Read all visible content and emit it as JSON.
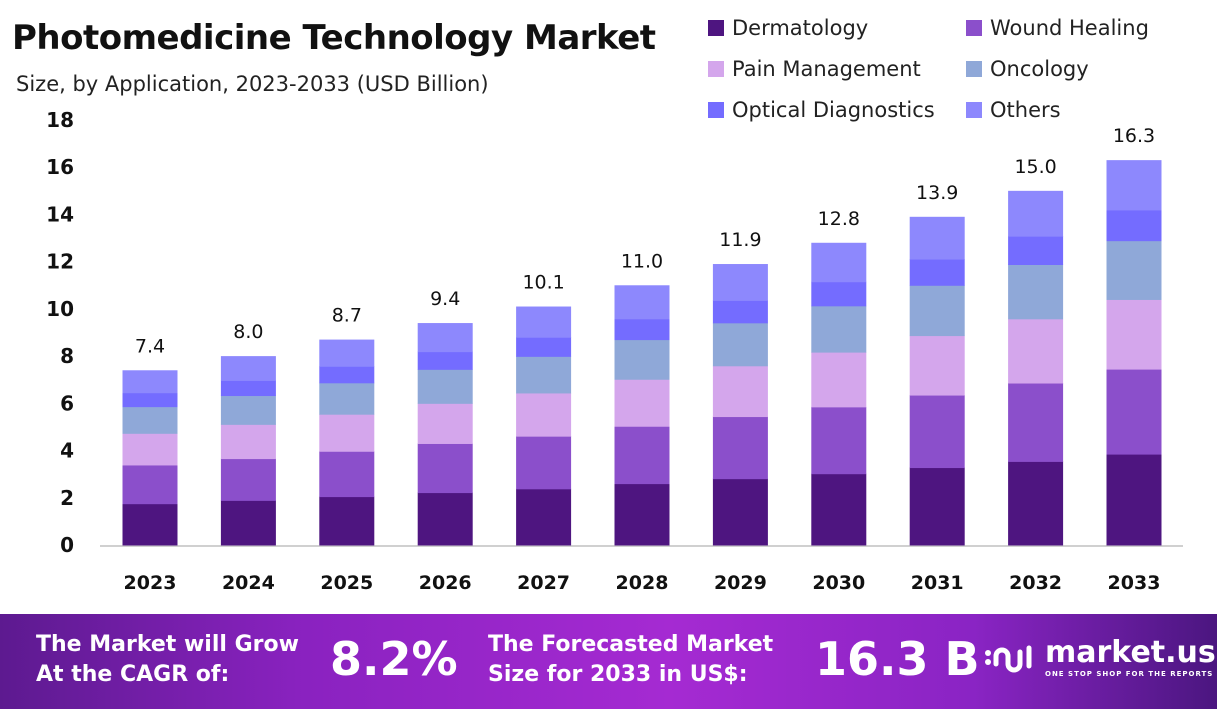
{
  "chart_data": {
    "type": "bar",
    "stacked": true,
    "title": "Photomedicine Technology Market",
    "subtitle": "Size, by Application, 2023-2033 (USD Billion)",
    "xlabel": "",
    "ylabel": "",
    "ylim": [
      0,
      18
    ],
    "yticks": [
      "0",
      "2",
      "4",
      "6",
      "8",
      "10",
      "12",
      "14",
      "16",
      "18"
    ],
    "categories": [
      "2023",
      "2024",
      "2025",
      "2026",
      "2027",
      "2028",
      "2029",
      "2030",
      "2031",
      "2032",
      "2033"
    ],
    "totals": [
      "7.4",
      "8.0",
      "8.7",
      "9.4",
      "10.1",
      "11.0",
      "11.9",
      "12.8",
      "13.9",
      "15.0",
      "16.3"
    ],
    "legend_position": "top-right",
    "series": [
      {
        "name": "Dermatology",
        "color": "#4e1580",
        "values": [
          1.75,
          1.89,
          2.05,
          2.22,
          2.38,
          2.6,
          2.81,
          3.02,
          3.28,
          3.54,
          3.85
        ]
      },
      {
        "name": "Wound Healing",
        "color": "#8b4fcb",
        "values": [
          1.64,
          1.77,
          1.92,
          2.08,
          2.23,
          2.43,
          2.63,
          2.83,
          3.07,
          3.32,
          3.6
        ]
      },
      {
        "name": "Pain Management",
        "color": "#d4a6ec",
        "values": [
          1.34,
          1.45,
          1.57,
          1.7,
          1.83,
          1.99,
          2.15,
          2.32,
          2.52,
          2.72,
          2.95
        ]
      },
      {
        "name": "Oncology",
        "color": "#8fa8d8",
        "values": [
          1.13,
          1.22,
          1.33,
          1.44,
          1.55,
          1.68,
          1.82,
          1.96,
          2.13,
          2.3,
          2.49
        ]
      },
      {
        "name": "Optical Diagnostics",
        "color": "#746cff",
        "values": [
          0.59,
          0.64,
          0.7,
          0.75,
          0.81,
          0.88,
          0.95,
          1.02,
          1.11,
          1.2,
          1.3
        ]
      },
      {
        "name": "Others",
        "color": "#8d88fd",
        "values": [
          0.95,
          1.03,
          1.13,
          1.21,
          1.3,
          1.42,
          1.54,
          1.65,
          1.79,
          1.92,
          2.11
        ]
      }
    ]
  },
  "banner": {
    "cagr_label_1": "The Market will Grow",
    "cagr_label_2": "At the CAGR of:",
    "cagr_value": "8.2%",
    "forecast_label_1": "The Forecasted Market",
    "forecast_label_2": "Size for 2033 in US$:",
    "forecast_value": "16.3 B",
    "brand": "market.us",
    "tagline": "ONE STOP SHOP FOR THE REPORTS"
  }
}
